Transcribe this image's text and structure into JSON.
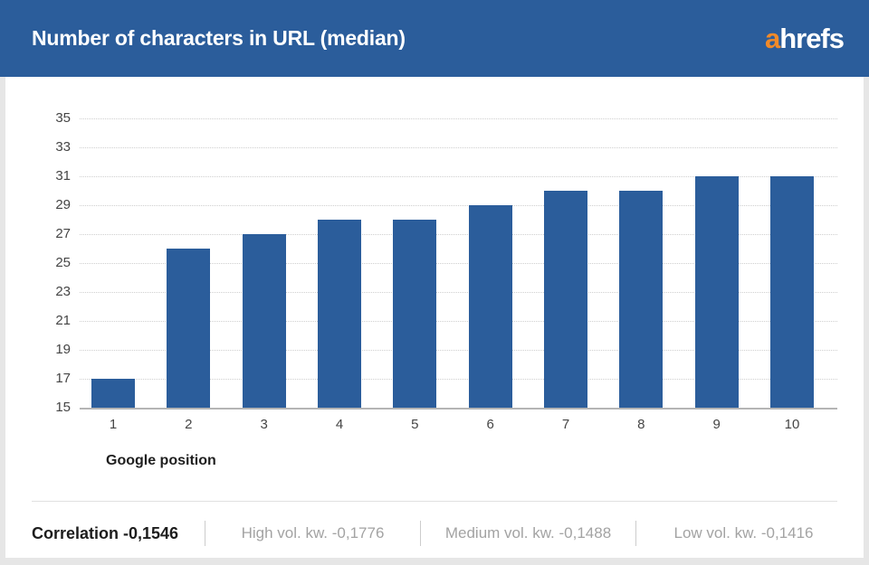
{
  "header": {
    "title": "Number of characters in URL (median)",
    "logo_prefix": "a",
    "logo_suffix": "hrefs"
  },
  "chart_data": {
    "type": "bar",
    "categories": [
      "1",
      "2",
      "3",
      "4",
      "5",
      "6",
      "7",
      "8",
      "9",
      "10"
    ],
    "values": [
      17,
      26,
      27,
      28,
      28,
      29,
      30,
      30,
      31,
      31
    ],
    "title": "Number of characters in URL (median)",
    "xlabel": "Google position",
    "ylabel": "",
    "ylim": [
      15,
      35
    ],
    "ytick_step": 2,
    "grid": "horizontal-dotted",
    "legend": "none",
    "bar_color": "#2b5d9b"
  },
  "footer": {
    "correlation_label": "Correlation -0,1546",
    "stats": [
      "High vol. kw. -0,1776",
      "Medium vol. kw. -0,1488",
      "Low vol. kw. -0,1416"
    ]
  },
  "colors": {
    "header_background": "#2b5d9b",
    "bar": "#2b5d9b",
    "logo_orange": "#f18a29",
    "page_background": "#e6e6e6",
    "card_background": "#ffffff",
    "gridline": "#cfcfcf",
    "axis_text": "#454545",
    "muted_stat_text": "#a3a3a3"
  }
}
